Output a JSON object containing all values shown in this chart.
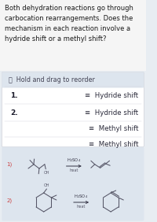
{
  "title_text": "Both dehydration reactions go through\ncarbocation rearrangements. Does the\nmechanism in each reaction involve a\nhydride shift or a methyl shift?",
  "header_text": "Ⓣ  Hold and drag to reorder",
  "rows": [
    {
      "label": "1.",
      "answer": "≡  Hydride shift"
    },
    {
      "label": "2.",
      "answer": "≡  Hydride shift"
    },
    {
      "label": "",
      "answer": "≡  Methyl shift"
    },
    {
      "label": "",
      "answer": "≡  Methyl shift"
    }
  ],
  "bg_color": "#e8edf2",
  "card_bg": "#ffffff",
  "header_bg": "#dde5ee",
  "bottom_bg": "#dde5ee",
  "title_bg": "#f5f5f5",
  "title_fontsize": 6.0,
  "row_fontsize": 6.2,
  "header_fontsize": 5.8,
  "mol_color": "#555566"
}
